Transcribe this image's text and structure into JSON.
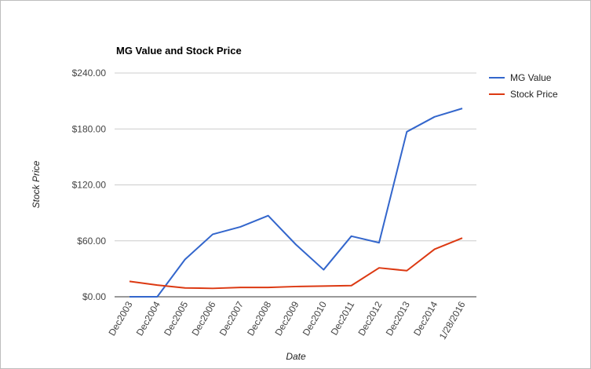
{
  "chart_data": {
    "type": "line",
    "title": "MG Value and Stock Price",
    "xlabel": "Date",
    "ylabel": "Stock Price",
    "categories": [
      "Dec2003",
      "Dec2004",
      "Dec2005",
      "Dec2006",
      "Dec2007",
      "Dec2008",
      "Dec2009",
      "Dec2010",
      "Dec2011",
      "Dec2012",
      "Dec2013",
      "Dec2014",
      "1/28/2016"
    ],
    "series": [
      {
        "name": "MG Value",
        "color": "#3366cc",
        "values": [
          0,
          0,
          40,
          67,
          75,
          87,
          56,
          29,
          65,
          58,
          177,
          193,
          202
        ]
      },
      {
        "name": "Stock Price",
        "color": "#dc3912",
        "values": [
          16.5,
          12.5,
          9.5,
          9,
          10,
          10,
          11,
          11.5,
          12,
          31,
          28,
          51,
          63
        ]
      }
    ],
    "ylim": [
      0,
      240
    ],
    "yticks": [
      0,
      60,
      120,
      180,
      240
    ],
    "ytick_labels": [
      "$0.00",
      "$60.00",
      "$120.00",
      "$180.00",
      "$240.00"
    ],
    "grid": true,
    "legend_position": "right"
  }
}
